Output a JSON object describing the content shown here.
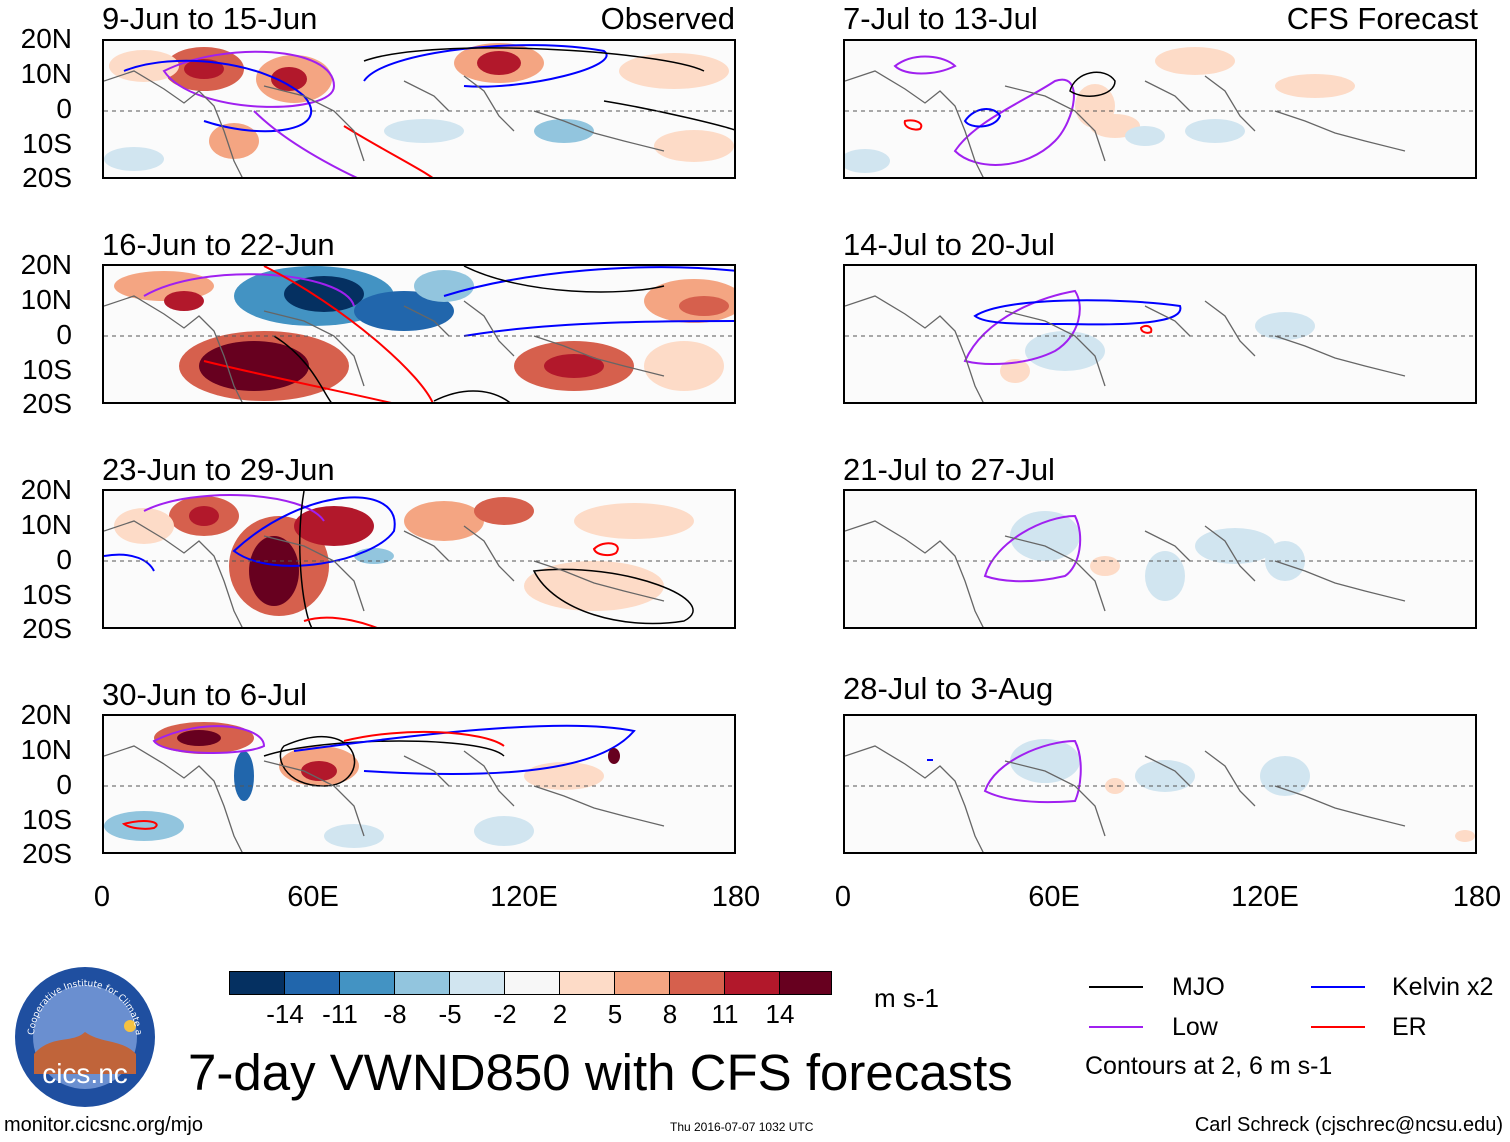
{
  "title": "7-day VWND850 with CFS forecasts",
  "observed_label": "Observed",
  "forecast_label": "CFS Forecast",
  "observed_panels": [
    {
      "period": "9-Jun to 15-Jun"
    },
    {
      "period": "16-Jun to 22-Jun"
    },
    {
      "period": "23-Jun to 29-Jun"
    },
    {
      "period": "30-Jun to 6-Jul"
    }
  ],
  "forecast_panels": [
    {
      "period": "7-Jul to 13-Jul"
    },
    {
      "period": "14-Jul to 20-Jul"
    },
    {
      "period": "21-Jul to 27-Jul"
    },
    {
      "period": "28-Jul to 3-Aug"
    }
  ],
  "lat_labels": [
    "20N",
    "10N",
    "0",
    "10S",
    "20S"
  ],
  "lon_labels": [
    "0",
    "60E",
    "120E",
    "180"
  ],
  "colorbar": {
    "units": "m s-1",
    "tick_labels": [
      "-14",
      "-11",
      "-8",
      "-5",
      "-2",
      "2",
      "5",
      "8",
      "11",
      "14"
    ],
    "colors": [
      "#053061",
      "#2166ac",
      "#4393c3",
      "#92c5de",
      "#d1e5f0",
      "#f7f7f7",
      "#fddbc7",
      "#f4a582",
      "#d6604d",
      "#b2182b",
      "#67001f"
    ]
  },
  "legend": {
    "items": [
      {
        "label": "MJO",
        "color": "#000000"
      },
      {
        "label": "Kelvin x2",
        "color": "#0000ff"
      },
      {
        "label": "Low",
        "color": "#a020f0"
      },
      {
        "label": "ER",
        "color": "#ff0000"
      }
    ],
    "contours_note": "Contours at 2, 6 m s-1"
  },
  "logo_text": "cics.nc",
  "logo_ring_text": "Cooperative Institute for Climate and Satellites",
  "footer": {
    "url": "monitor.cicsnc.org/mjo",
    "timestamp": "Thu 2016-07-07 1032 UTC",
    "credit": "Carl Schreck (cjschrec@ncsu.edu)"
  }
}
